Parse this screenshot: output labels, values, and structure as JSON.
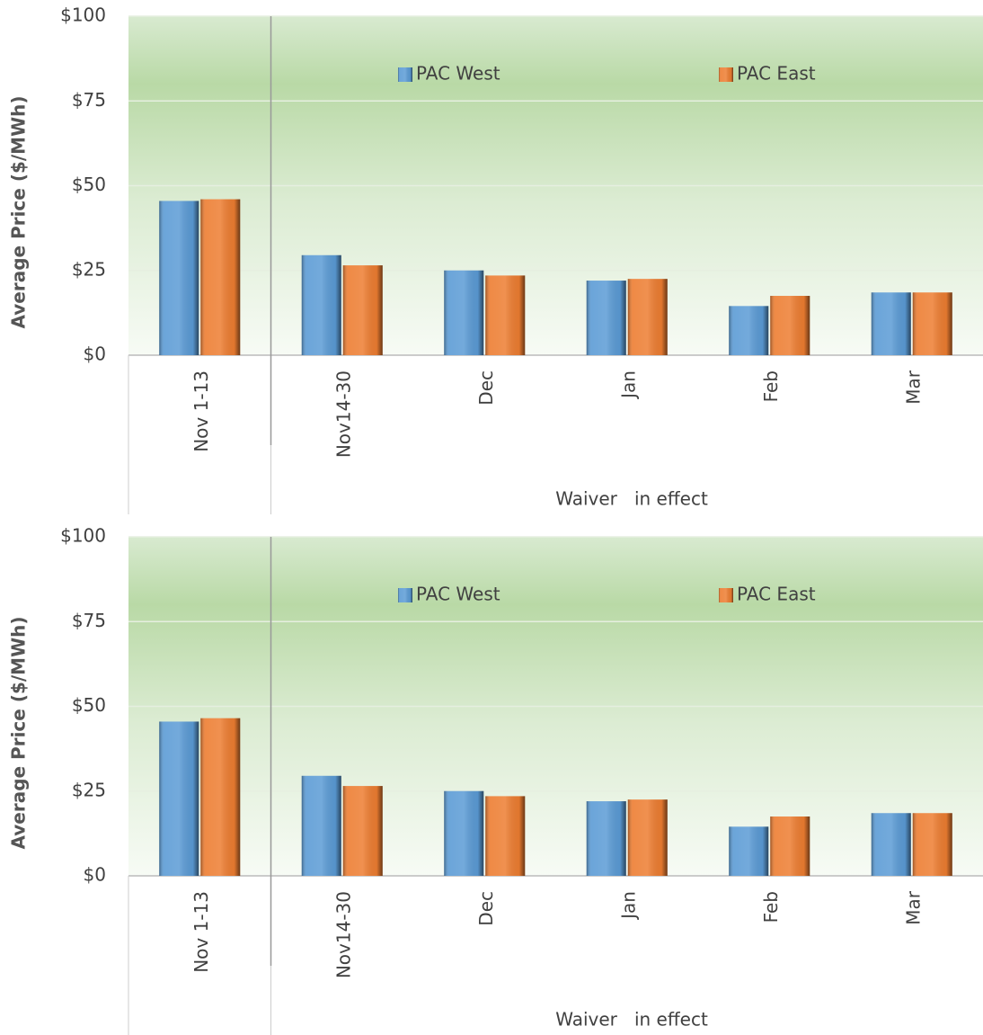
{
  "chart_data": [
    {
      "type": "bar",
      "y_label": "Average Price ($/MWh)",
      "annotation": "Waiver   in effect",
      "categories": [
        "Nov 1-13",
        "Nov14-30",
        "Dec",
        "Jan",
        "Feb",
        "Mar"
      ],
      "series": [
        {
          "name": "PAC West",
          "color": "#5b9bd5",
          "values": [
            45.5,
            29.5,
            25,
            22,
            14.5,
            18.5
          ]
        },
        {
          "name": "PAC East",
          "color": "#ed7d31",
          "values": [
            46,
            26.5,
            23.5,
            22.5,
            17.5,
            18.5
          ]
        }
      ],
      "ylim": [
        0,
        100
      ],
      "yticks": [
        {
          "value": 0,
          "label": "$0"
        },
        {
          "value": 25,
          "label": "$25"
        },
        {
          "value": 50,
          "label": "$50"
        },
        {
          "value": 75,
          "label": "$75"
        },
        {
          "value": 100,
          "label": "$100"
        }
      ],
      "grid": true,
      "legend": "top"
    },
    {
      "type": "bar",
      "y_label": "Average Price ($/MWh)",
      "annotation": "Waiver   in effect",
      "categories": [
        "Nov 1-13",
        "Nov14-30",
        "Dec",
        "Jan",
        "Feb",
        "Mar"
      ],
      "series": [
        {
          "name": "PAC West",
          "color": "#5b9bd5",
          "values": [
            45.5,
            29.5,
            25,
            22,
            14.5,
            18.5
          ]
        },
        {
          "name": "PAC East",
          "color": "#ed7d31",
          "values": [
            46.5,
            26.5,
            23.5,
            22.5,
            17.5,
            18.5
          ]
        }
      ],
      "ylim": [
        0,
        100
      ],
      "yticks": [
        {
          "value": 0,
          "label": "$0"
        },
        {
          "value": 25,
          "label": "$25"
        },
        {
          "value": 50,
          "label": "$50"
        },
        {
          "value": 75,
          "label": "$75"
        },
        {
          "value": 100,
          "label": "$100"
        }
      ],
      "grid": true,
      "legend": "top"
    }
  ]
}
